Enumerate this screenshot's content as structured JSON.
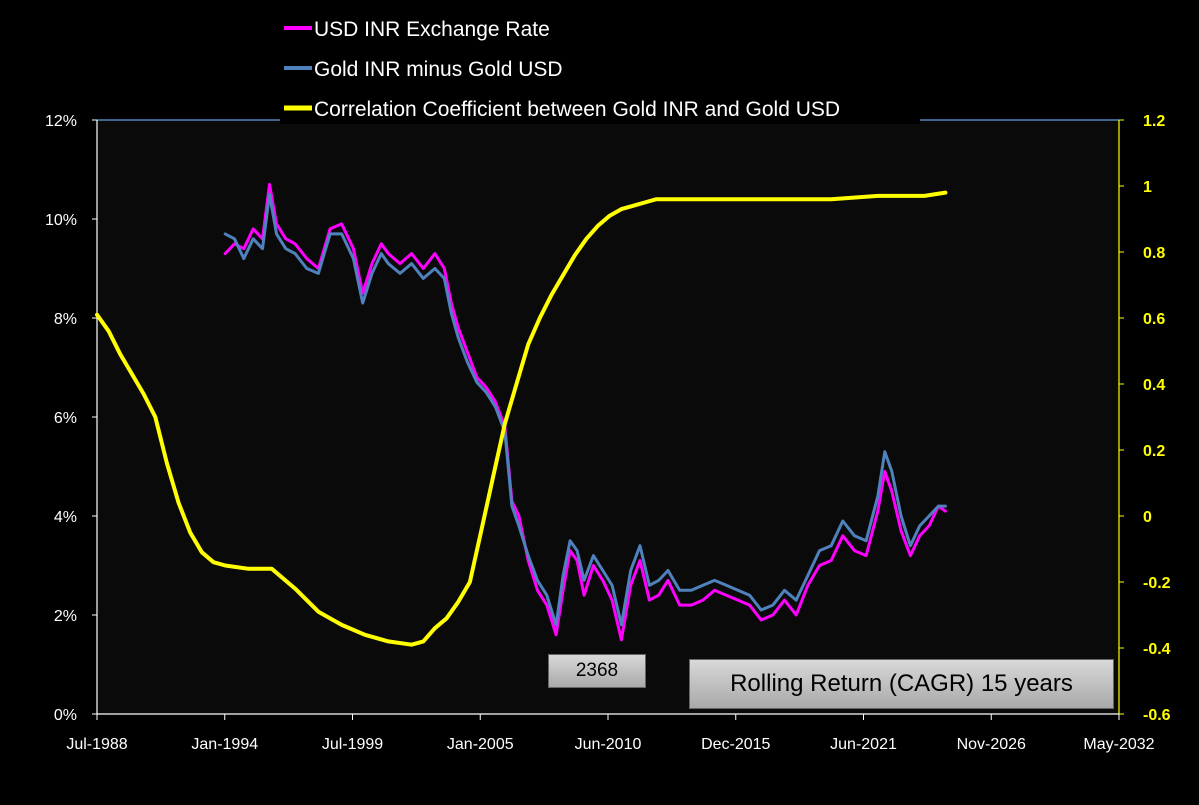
{
  "chart_data": {
    "type": "line",
    "title": "Rolling Return (CAGR) 15 years",
    "annotation": "2368",
    "legend_position": "top",
    "grid": false,
    "background": "#000000",
    "plot_background": "#0a0a0a",
    "x_axis": {
      "ticks": [
        "Jul-1988",
        "Jan-1994",
        "Jul-1999",
        "Jan-2005",
        "Jun-2010",
        "Dec-2015",
        "Jun-2021",
        "Nov-2026",
        "May-2032"
      ],
      "range": [
        1988.5,
        2032.35
      ]
    },
    "y_axis_left": {
      "ticks": [
        "0%",
        "2%",
        "4%",
        "6%",
        "8%",
        "10%",
        "12%"
      ],
      "range": [
        0,
        12
      ],
      "unit": "%"
    },
    "y_axis_right": {
      "ticks": [
        "-0.6",
        "-0.4",
        "-0.2",
        "0",
        "0.2",
        "0.4",
        "0.6",
        "0.8",
        "1",
        "1.2"
      ],
      "range": [
        -0.6,
        1.2
      ],
      "color": "#ffff00"
    },
    "series": [
      {
        "name": "USD INR Exchange Rate",
        "color": "#ff00ff",
        "axis": "left",
        "x": [
          1994.0,
          1994.4,
          1994.8,
          1995.2,
          1995.6,
          1995.9,
          1996.2,
          1996.6,
          1997.0,
          1997.5,
          1998.0,
          1998.5,
          1999.0,
          1999.5,
          1999.9,
          2000.3,
          2000.7,
          2001.0,
          2001.5,
          2002.0,
          2002.5,
          2003.0,
          2003.4,
          2003.7,
          2004.0,
          2004.4,
          2004.8,
          2005.2,
          2005.6,
          2006.0,
          2006.3,
          2006.6,
          2007.0,
          2007.4,
          2007.8,
          2008.2,
          2008.5,
          2008.8,
          2009.1,
          2009.4,
          2009.8,
          2010.2,
          2010.6,
          2011.0,
          2011.4,
          2011.8,
          2012.2,
          2012.6,
          2013.0,
          2013.5,
          2014.0,
          2014.5,
          2015.0,
          2015.5,
          2016.0,
          2016.5,
          2017.0,
          2017.5,
          2018.0,
          2018.5,
          2019.0,
          2019.5,
          2020.0,
          2020.5,
          2021.0,
          2021.5,
          2022.0,
          2022.3,
          2022.6,
          2023.0,
          2023.4,
          2023.8,
          2024.2,
          2024.6,
          2024.9
        ],
        "values": [
          9.3,
          9.5,
          9.4,
          9.8,
          9.6,
          10.7,
          9.9,
          9.6,
          9.5,
          9.2,
          9.0,
          9.8,
          9.9,
          9.4,
          8.5,
          9.1,
          9.5,
          9.3,
          9.1,
          9.3,
          9.0,
          9.3,
          9.0,
          8.3,
          7.8,
          7.3,
          6.8,
          6.6,
          6.3,
          5.8,
          4.3,
          4.0,
          3.1,
          2.5,
          2.2,
          1.6,
          2.5,
          3.3,
          3.1,
          2.4,
          3.0,
          2.7,
          2.3,
          1.5,
          2.6,
          3.1,
          2.3,
          2.4,
          2.7,
          2.2,
          2.2,
          2.3,
          2.5,
          2.4,
          2.3,
          2.2,
          1.9,
          2.0,
          2.3,
          2.0,
          2.6,
          3.0,
          3.1,
          3.6,
          3.3,
          3.2,
          4.1,
          4.9,
          4.5,
          3.7,
          3.2,
          3.6,
          3.8,
          4.2,
          4.1
        ]
      },
      {
        "name": "Gold INR minus Gold USD",
        "color": "#4f81bd",
        "axis": "left",
        "x": [
          1994.0,
          1994.4,
          1994.8,
          1995.2,
          1995.6,
          1995.9,
          1996.2,
          1996.6,
          1997.0,
          1997.5,
          1998.0,
          1998.5,
          1999.0,
          1999.5,
          1999.9,
          2000.3,
          2000.7,
          2001.0,
          2001.5,
          2002.0,
          2002.5,
          2003.0,
          2003.4,
          2003.7,
          2004.0,
          2004.4,
          2004.8,
          2005.2,
          2005.6,
          2006.0,
          2006.3,
          2006.6,
          2007.0,
          2007.4,
          2007.8,
          2008.2,
          2008.5,
          2008.8,
          2009.1,
          2009.4,
          2009.8,
          2010.2,
          2010.6,
          2011.0,
          2011.4,
          2011.8,
          2012.2,
          2012.6,
          2013.0,
          2013.5,
          2014.0,
          2014.5,
          2015.0,
          2015.5,
          2016.0,
          2016.5,
          2017.0,
          2017.5,
          2018.0,
          2018.5,
          2019.0,
          2019.5,
          2020.0,
          2020.5,
          2021.0,
          2021.5,
          2022.0,
          2022.3,
          2022.6,
          2023.0,
          2023.4,
          2023.8,
          2024.2,
          2024.6,
          2024.9
        ],
        "values": [
          9.7,
          9.6,
          9.2,
          9.6,
          9.4,
          10.5,
          9.7,
          9.4,
          9.3,
          9.0,
          8.9,
          9.7,
          9.7,
          9.2,
          8.3,
          8.9,
          9.3,
          9.1,
          8.9,
          9.1,
          8.8,
          9.0,
          8.8,
          8.1,
          7.6,
          7.1,
          6.7,
          6.5,
          6.2,
          5.7,
          4.2,
          3.8,
          3.2,
          2.7,
          2.4,
          1.8,
          2.8,
          3.5,
          3.3,
          2.7,
          3.2,
          2.9,
          2.6,
          1.8,
          2.9,
          3.4,
          2.6,
          2.7,
          2.9,
          2.5,
          2.5,
          2.6,
          2.7,
          2.6,
          2.5,
          2.4,
          2.1,
          2.2,
          2.5,
          2.3,
          2.8,
          3.3,
          3.4,
          3.9,
          3.6,
          3.5,
          4.4,
          5.3,
          4.9,
          4.0,
          3.4,
          3.8,
          4.0,
          4.2,
          4.2
        ]
      },
      {
        "name": "Correlation Coefficient between Gold INR and Gold USD",
        "color": "#ffff00",
        "axis": "right",
        "x": [
          1988.5,
          1989.0,
          1989.5,
          1990.0,
          1990.5,
          1991.0,
          1991.5,
          1992.0,
          1992.5,
          1993.0,
          1993.5,
          1994.0,
          1995.0,
          1996.0,
          1997.0,
          1998.0,
          1999.0,
          2000.0,
          2001.0,
          2002.0,
          2002.5,
          2003.0,
          2003.5,
          2004.0,
          2004.5,
          2005.0,
          2005.5,
          2006.0,
          2006.5,
          2007.0,
          2007.5,
          2008.0,
          2008.5,
          2009.0,
          2009.5,
          2010.0,
          2010.5,
          2011.0,
          2011.5,
          2012.0,
          2012.5,
          2013.0,
          2014.0,
          2016.0,
          2018.0,
          2020.0,
          2022.0,
          2024.0,
          2024.9
        ],
        "values": [
          0.61,
          0.56,
          0.49,
          0.43,
          0.37,
          0.3,
          0.16,
          0.04,
          -0.05,
          -0.11,
          -0.14,
          -0.15,
          -0.16,
          -0.16,
          -0.22,
          -0.29,
          -0.33,
          -0.36,
          -0.38,
          -0.39,
          -0.38,
          -0.34,
          -0.31,
          -0.26,
          -0.2,
          -0.04,
          0.12,
          0.28,
          0.4,
          0.52,
          0.6,
          0.67,
          0.73,
          0.79,
          0.84,
          0.88,
          0.91,
          0.93,
          0.94,
          0.95,
          0.96,
          0.96,
          0.96,
          0.96,
          0.96,
          0.96,
          0.97,
          0.97,
          0.98
        ]
      }
    ]
  }
}
